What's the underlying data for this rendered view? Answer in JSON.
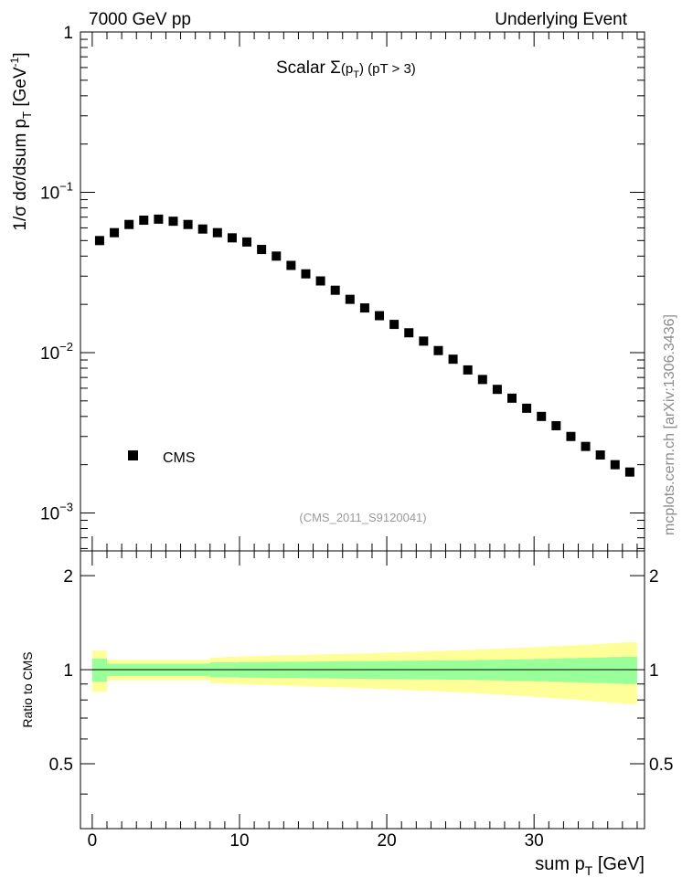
{
  "header": {
    "left": "7000 GeV pp",
    "right": "Underlying Event"
  },
  "side_label": "mcplots.cern.ch [arXiv:1306.3436]",
  "chart_data": [
    {
      "type": "scatter",
      "title": "Scalar Σ(p_T) (pT > 3)",
      "title_parts": {
        "prefix": "Scalar ",
        "sigma": "Σ",
        "open": "(p",
        "sub": "T",
        "close": ")",
        "cut": " (pT >  3)"
      },
      "xlabel": "sum p_T [GeV]",
      "xlabel_parts": {
        "main": "sum p",
        "sub": "T",
        "unit": " [GeV]"
      },
      "ylabel": "1/σ dσ/dsum p_T [GeV^-1]",
      "ylabel_parts": {
        "main": "1/σ dσ/dsum p",
        "sub": "T",
        "unit": " [GeV",
        "sup": "-1",
        "close": "]"
      },
      "yscale": "log",
      "xlim": [
        -0.8,
        37.5
      ],
      "ylim": [
        0.00058,
        1.0
      ],
      "ytick_labels": [
        {
          "value": 1,
          "base": "1",
          "exp": ""
        },
        {
          "value": 0.1,
          "base": "10",
          "exp": "−1"
        },
        {
          "value": 0.01,
          "base": "10",
          "exp": "−2"
        },
        {
          "value": 0.001,
          "base": "10",
          "exp": "−3"
        }
      ],
      "legend": {
        "entries": [
          "CMS"
        ],
        "placement": "lower-left"
      },
      "watermark": "(CMS_2011_S9120041)",
      "series": [
        {
          "name": "CMS",
          "x": [
            0.5,
            1.5,
            2.5,
            3.5,
            4.5,
            5.5,
            6.5,
            7.5,
            8.5,
            9.5,
            10.5,
            11.5,
            12.5,
            13.5,
            14.5,
            15.5,
            16.5,
            17.5,
            18.5,
            19.5,
            20.5,
            21.5,
            22.5,
            23.5,
            24.5,
            25.5,
            26.5,
            27.5,
            28.5,
            29.5,
            30.5,
            31.5,
            32.5,
            33.5,
            34.5,
            35.5,
            36.5
          ],
          "y": [
            0.05,
            0.056,
            0.063,
            0.067,
            0.068,
            0.066,
            0.063,
            0.059,
            0.056,
            0.052,
            0.049,
            0.044,
            0.04,
            0.035,
            0.031,
            0.028,
            0.0245,
            0.0215,
            0.019,
            0.017,
            0.015,
            0.0133,
            0.0118,
            0.0103,
            0.0091,
            0.0078,
            0.0068,
            0.0059,
            0.0052,
            0.0045,
            0.004,
            0.0035,
            0.003,
            0.0026,
            0.0023,
            0.002,
            0.0018
          ]
        }
      ]
    },
    {
      "type": "area",
      "ylabel": "Ratio to CMS",
      "xlabel": "sum p_T [GeV]",
      "xlim": [
        -0.8,
        37.5
      ],
      "ylim": [
        0.31,
        2.4
      ],
      "yticks": [
        0.5,
        1,
        2
      ],
      "ytick_labels": [
        "0.5",
        "1",
        "2"
      ],
      "xticks": [
        0,
        10,
        20,
        30
      ],
      "xtick_labels": [
        "0",
        "10",
        "20",
        "30"
      ],
      "reference_line": 1,
      "bands": {
        "x_edges": [
          0,
          1,
          2,
          3,
          4,
          5,
          6,
          7,
          8,
          9,
          10,
          11,
          12,
          13,
          14,
          15,
          16,
          17,
          18,
          19,
          20,
          21,
          22,
          23,
          24,
          25,
          26,
          27,
          28,
          29,
          30,
          31,
          32,
          33,
          34,
          35,
          36,
          37
        ],
        "inner_half_width": [
          0.085,
          0.045,
          0.045,
          0.045,
          0.045,
          0.045,
          0.045,
          0.045,
          0.055,
          0.055,
          0.057,
          0.058,
          0.059,
          0.06,
          0.061,
          0.062,
          0.063,
          0.064,
          0.065,
          0.066,
          0.067,
          0.068,
          0.069,
          0.07,
          0.071,
          0.072,
          0.074,
          0.076,
          0.078,
          0.08,
          0.082,
          0.085,
          0.088,
          0.091,
          0.094,
          0.097,
          0.1
        ],
        "outer_half_width": [
          0.15,
          0.075,
          0.075,
          0.075,
          0.075,
          0.075,
          0.075,
          0.075,
          0.095,
          0.1,
          0.104,
          0.107,
          0.11,
          0.113,
          0.116,
          0.119,
          0.122,
          0.125,
          0.128,
          0.132,
          0.136,
          0.14,
          0.144,
          0.148,
          0.152,
          0.157,
          0.162,
          0.167,
          0.172,
          0.177,
          0.183,
          0.189,
          0.196,
          0.203,
          0.21,
          0.217,
          0.224
        ],
        "inner_color": "#99ff99",
        "outer_color": "#ffff99"
      }
    }
  ]
}
